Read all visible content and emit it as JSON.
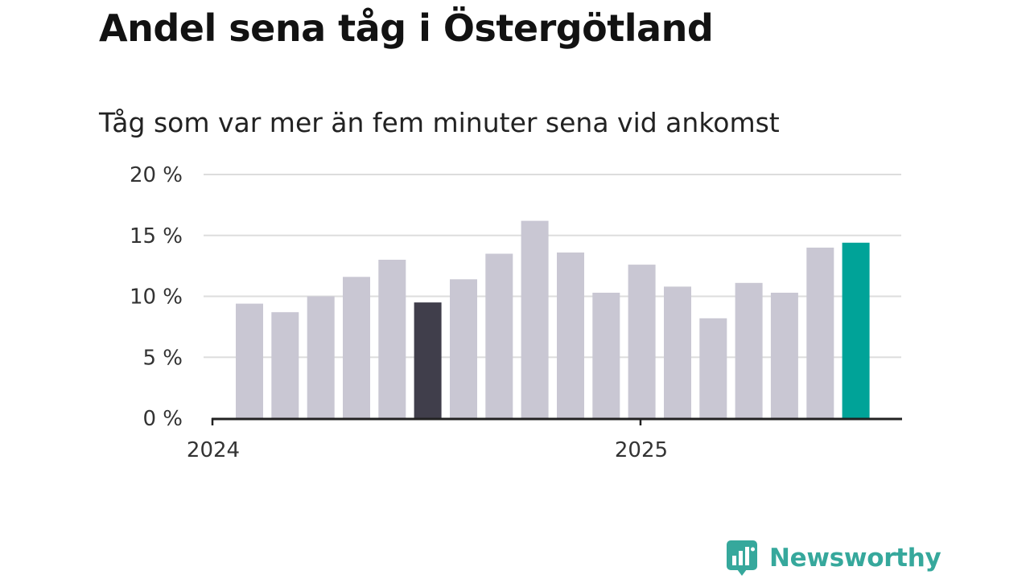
{
  "title": "Andel sena tåg i Östergötland",
  "subtitle": "Tåg som var mer än fem minuter sena vid ankomst",
  "brand": {
    "name": "Newsworthy",
    "color": "#36a89c"
  },
  "colors": {
    "default_bar": "#c9c7d3",
    "highlight_dark": "#403e4b",
    "highlight_latest": "#00a398",
    "gridline": "#dddddd",
    "axis": "#222222"
  },
  "chart_data": {
    "type": "bar",
    "title": "Andel sena tåg i Östergötland",
    "subtitle": "Tåg som var mer än fem minuter sena vid ankomst",
    "xlabel": "",
    "ylabel": "",
    "ylim": [
      0,
      20
    ],
    "grid": true,
    "legend": "none",
    "y_ticks": [
      {
        "value": 0,
        "label": "0 %"
      },
      {
        "value": 5,
        "label": "5 %"
      },
      {
        "value": 10,
        "label": "10 %"
      },
      {
        "value": 15,
        "label": "15 %"
      },
      {
        "value": 20,
        "label": "20 %"
      }
    ],
    "x_ticks": [
      {
        "position": 0,
        "label": "2024"
      },
      {
        "position": 12,
        "label": "2025"
      }
    ],
    "values": [
      9.4,
      8.7,
      10.0,
      11.6,
      13.0,
      9.5,
      11.4,
      13.5,
      16.2,
      13.6,
      10.3,
      12.6,
      10.8,
      8.2,
      11.1,
      10.3,
      14.0,
      14.4
    ],
    "highlights": {
      "5": "highlight_dark",
      "17": "highlight_latest"
    }
  }
}
